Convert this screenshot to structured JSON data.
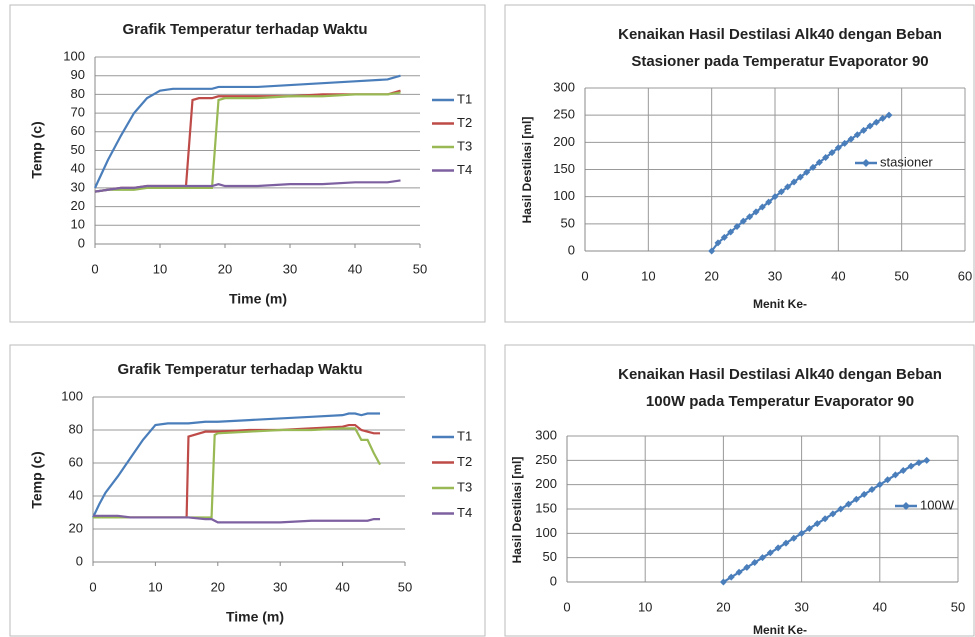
{
  "chart_data": [
    {
      "type": "line",
      "title": [
        "Grafik Temperatur terhadap Waktu"
      ],
      "x_label": "Time (m)",
      "y_label": "Temp (c)",
      "x": [
        0,
        2,
        4,
        6,
        8,
        10,
        12,
        14,
        15,
        16,
        17,
        18,
        19,
        20,
        25,
        30,
        35,
        40,
        45,
        47
      ],
      "series": [
        {
          "name": "T1",
          "color": "#4a7ebb",
          "values": [
            30,
            45,
            58,
            70,
            78,
            82,
            83,
            83,
            83,
            83,
            83,
            83,
            84,
            84,
            84,
            85,
            86,
            87,
            88,
            90
          ]
        },
        {
          "name": "T2",
          "color": "#be4b48",
          "values": [
            28,
            29,
            30,
            30,
            31,
            31,
            31,
            31,
            77,
            78,
            78,
            78,
            79,
            79,
            79,
            79,
            80,
            80,
            80,
            82
          ]
        },
        {
          "name": "T3",
          "color": "#98b954",
          "values": [
            28,
            29,
            29,
            29,
            30,
            30,
            30,
            30,
            30,
            30,
            30,
            30,
            77,
            78,
            78,
            79,
            79,
            80,
            80,
            81
          ]
        },
        {
          "name": "T4",
          "color": "#7d60a0",
          "values": [
            28,
            29,
            30,
            30,
            31,
            31,
            31,
            31,
            31,
            31,
            31,
            31,
            32,
            31,
            31,
            32,
            32,
            33,
            33,
            34
          ]
        }
      ],
      "xlim": [
        0,
        50
      ],
      "xticks": [
        0,
        10,
        20,
        30,
        40,
        50
      ],
      "ylim": [
        0,
        100
      ],
      "yticks": [
        0,
        10,
        20,
        30,
        40,
        50,
        60,
        70,
        80,
        90,
        100
      ],
      "grid": "horizontal",
      "legend": "right"
    },
    {
      "type": "line",
      "title": [
        "Grafik Temperatur terhadap Waktu"
      ],
      "x_label": "Time (m)",
      "y_label": "Temp (c)",
      "x": [
        0,
        1,
        2,
        4,
        6,
        8,
        10,
        12,
        15,
        15.3,
        18,
        19,
        19.5,
        20,
        25,
        30,
        35,
        40,
        41,
        42,
        43,
        44,
        45,
        46
      ],
      "series": [
        {
          "name": "T1",
          "color": "#4a7ebb",
          "values": [
            27,
            35,
            42,
            52,
            63,
            74,
            83,
            84,
            84,
            84,
            85,
            85,
            85,
            85,
            86,
            87,
            88,
            89,
            90,
            90,
            89,
            90,
            90,
            90
          ]
        },
        {
          "name": "T2",
          "color": "#be4b48",
          "values": [
            27,
            27,
            27,
            27,
            27,
            27,
            27,
            27,
            27,
            76,
            79,
            79,
            79,
            79,
            80,
            80,
            81,
            82,
            83,
            83,
            80,
            79,
            78,
            78
          ]
        },
        {
          "name": "T3",
          "color": "#98b954",
          "values": [
            27,
            27,
            27,
            27,
            27,
            27,
            27,
            27,
            27,
            27,
            27,
            27,
            77,
            78,
            79,
            80,
            80,
            81,
            81,
            81,
            74,
            74,
            66,
            59
          ]
        },
        {
          "name": "T4",
          "color": "#7d60a0",
          "values": [
            28,
            28,
            28,
            28,
            27,
            27,
            27,
            27,
            27,
            27,
            26,
            26,
            25,
            24,
            24,
            24,
            25,
            25,
            25,
            25,
            25,
            25,
            26,
            26
          ]
        }
      ],
      "xlim": [
        0,
        50
      ],
      "xticks": [
        0,
        10,
        20,
        30,
        40,
        50
      ],
      "ylim": [
        0,
        100
      ],
      "yticks": [
        0,
        20,
        40,
        60,
        80,
        100
      ],
      "grid": "horizontal",
      "legend": "right"
    },
    {
      "type": "line",
      "marker": "diamond",
      "title": [
        "Kenaikan Hasil Destilasi Alk40 dengan Beban",
        "Stasioner pada Temperatur Evaporator 90"
      ],
      "x_label": "Menit Ke-",
      "y_label": "Hasil Destilasi [ml]",
      "x": [
        20,
        21,
        22,
        23,
        24,
        25,
        26,
        27,
        28,
        29,
        30,
        31,
        32,
        33,
        34,
        35,
        36,
        37,
        38,
        39,
        40,
        41,
        42,
        43,
        44,
        45,
        46,
        47,
        48
      ],
      "series": [
        {
          "name": "stasioner",
          "color": "#4a7ebb",
          "values": [
            0,
            15,
            25,
            35,
            45,
            55,
            63,
            72,
            81,
            90,
            100,
            109,
            118,
            127,
            136,
            145,
            154,
            163,
            172,
            181,
            190,
            198,
            206,
            214,
            222,
            230,
            237,
            244,
            250
          ]
        }
      ],
      "xlim": [
        0,
        60
      ],
      "xticks": [
        0,
        10,
        20,
        30,
        40,
        50,
        60
      ],
      "ylim": [
        0,
        300
      ],
      "yticks": [
        0,
        50,
        100,
        150,
        200,
        250,
        300
      ],
      "grid": "both",
      "legend": "right"
    },
    {
      "type": "line",
      "marker": "diamond",
      "title": [
        "Kenaikan Hasil Destilasi Alk40 dengan Beban",
        "100W  pada Temperatur Evaporator 90"
      ],
      "x_label": "Menit Ke-",
      "y_label": "Hasil Destilasi [ml]",
      "x": [
        20,
        21,
        22,
        23,
        24,
        25,
        26,
        27,
        28,
        29,
        30,
        31,
        32,
        33,
        34,
        35,
        36,
        37,
        38,
        39,
        40,
        41,
        42,
        43,
        44,
        45,
        46
      ],
      "series": [
        {
          "name": "100W",
          "color": "#4a7ebb",
          "values": [
            0,
            10,
            20,
            30,
            40,
            50,
            60,
            70,
            80,
            90,
            100,
            110,
            120,
            130,
            140,
            150,
            160,
            170,
            180,
            190,
            200,
            210,
            220,
            229,
            238,
            245,
            250
          ]
        }
      ],
      "xlim": [
        0,
        50
      ],
      "xticks": [
        0,
        10,
        20,
        30,
        40,
        50
      ],
      "ylim": [
        0,
        300
      ],
      "yticks": [
        0,
        50,
        100,
        150,
        200,
        250,
        300
      ],
      "grid": "both",
      "legend": "right"
    }
  ]
}
